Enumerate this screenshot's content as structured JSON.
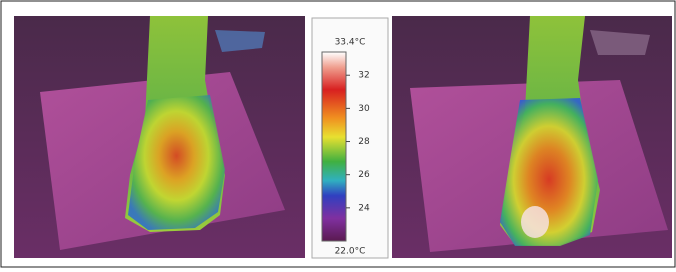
{
  "colorbar": {
    "max": {
      "value": 33.4,
      "label": "33.4°C"
    },
    "min": {
      "value": 22.0,
      "label": "22.0°C"
    },
    "ticks": [
      24,
      26,
      28,
      30,
      32
    ]
  }
}
